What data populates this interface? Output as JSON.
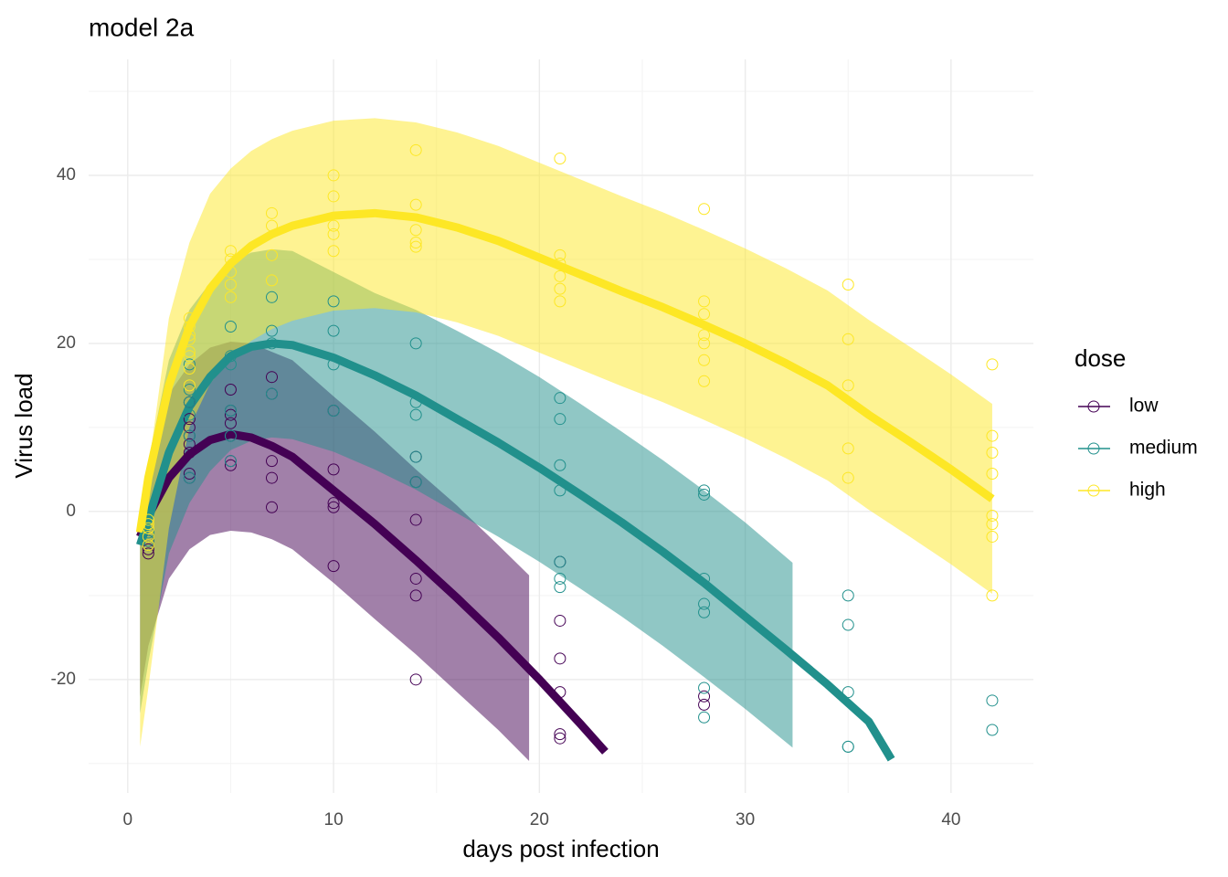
{
  "chart_data": {
    "type": "line",
    "title": "model 2a",
    "x_label": "days post infection",
    "y_label": "Virus load",
    "xlim": [
      -1.9,
      44.0
    ],
    "ylim": [
      -33.5,
      53.8
    ],
    "xticks": [
      0,
      10,
      20,
      30,
      40
    ],
    "yticks": [
      -20,
      0,
      20,
      40
    ],
    "xminorticks": [
      5,
      15,
      25,
      35
    ],
    "yminorticks": [
      -30,
      -10,
      10,
      30,
      50
    ],
    "grid": true,
    "legend_title": "dose",
    "legend_position": "right",
    "band_opacity": 0.5,
    "series": [
      {
        "name": "low",
        "color": "#440154",
        "points": {
          "x": [
            1,
            1,
            1,
            1,
            1,
            3,
            3,
            3,
            3,
            3,
            3,
            3,
            3,
            5,
            5,
            5,
            5,
            5,
            5,
            5,
            7,
            7,
            7,
            7,
            7,
            10,
            10,
            10,
            10,
            10,
            14,
            14,
            14,
            14,
            14,
            14,
            21,
            21,
            21,
            21,
            21,
            21,
            28,
            28
          ],
          "y": [
            -5,
            -4.5,
            -3.5,
            -3,
            -4,
            4,
            4.5,
            7,
            8,
            9,
            10,
            11,
            13,
            5.5,
            6,
            9,
            10.5,
            11.5,
            12,
            14.5,
            0.5,
            4,
            6,
            14,
            16,
            -6.5,
            0.5,
            1,
            5,
            12,
            -20,
            -10,
            -8,
            -1,
            3.5,
            6.5,
            -27,
            -26.5,
            -21.5,
            -17.5,
            -13,
            -6,
            -23,
            -22
          ]
        },
        "fit": {
          "x": [
            0.6,
            1,
            2,
            3,
            4,
            5,
            6,
            7,
            8,
            10,
            12,
            14,
            16,
            18,
            20,
            22,
            23.2
          ],
          "y": [
            -3,
            -0.5,
            4,
            6.8,
            8.5,
            9.2,
            8.8,
            7.8,
            6.5,
            2.5,
            -1.5,
            -5.8,
            -10.3,
            -15,
            -20,
            -25.3,
            -28.6
          ]
        },
        "band": {
          "x": [
            0.6,
            1,
            2,
            3,
            4,
            5,
            6,
            7,
            8,
            10,
            12,
            14,
            16,
            18,
            19.5
          ],
          "lower": [
            -22,
            -16,
            -8,
            -4.5,
            -2.8,
            -2.3,
            -2.5,
            -3.3,
            -4.5,
            -8.5,
            -12.8,
            -17,
            -21.5,
            -26,
            -29.7
          ],
          "upper": [
            -1,
            4,
            14,
            17.5,
            19.5,
            20.2,
            20,
            19,
            18,
            13.7,
            9.5,
            5,
            0.7,
            -4,
            -7.6
          ]
        }
      },
      {
        "name": "medium",
        "color": "#21908C",
        "points": {
          "x": [
            1,
            1,
            1,
            1,
            3,
            3,
            3,
            3,
            3,
            3,
            5,
            5,
            5,
            5,
            5,
            5,
            7,
            7,
            7,
            7,
            10,
            10,
            10,
            10,
            14,
            14,
            14,
            14,
            14,
            21,
            21,
            21,
            21,
            21,
            21,
            21,
            28,
            28,
            28,
            28,
            28,
            28,
            28,
            35,
            35,
            35,
            35,
            35,
            42,
            42
          ],
          "y": [
            -4,
            -3,
            -2.5,
            -3.5,
            4,
            9,
            11.5,
            13,
            14.5,
            17.5,
            6,
            9,
            12,
            17.5,
            18.5,
            22,
            14,
            20,
            21.5,
            25.5,
            12,
            17.5,
            21.5,
            25,
            3.5,
            6.5,
            11.5,
            13,
            20,
            -9,
            -8,
            -6,
            2.5,
            5.5,
            11,
            13.5,
            -24.5,
            -21,
            -12,
            -11,
            -8,
            2,
            2.5,
            -28,
            -28,
            -21.5,
            -13.5,
            -10,
            -26,
            -22.5
          ]
        },
        "fit": {
          "x": [
            0.6,
            1,
            2,
            3,
            4,
            5,
            6,
            7,
            8,
            10,
            12,
            14,
            16,
            18,
            20,
            22,
            24,
            26,
            28,
            30,
            32,
            34,
            36,
            37.1
          ],
          "y": [
            -4,
            -1,
            7,
            12.5,
            16,
            18.5,
            19.6,
            20,
            19.8,
            18.3,
            16.2,
            13.8,
            11,
            8.2,
            5.2,
            2,
            -1.3,
            -4.8,
            -8.5,
            -12.5,
            -16.5,
            -20.6,
            -25,
            -29.5
          ]
        },
        "band": {
          "x": [
            0.6,
            1,
            2,
            3,
            4,
            5,
            6,
            7,
            8,
            10,
            12,
            14,
            16,
            18,
            20,
            22,
            24,
            26,
            28,
            30,
            32.3
          ],
          "lower": [
            -24,
            -18,
            -5,
            1,
            4.8,
            7.3,
            8.4,
            8.8,
            8.6,
            7.1,
            5,
            2.6,
            -0.2,
            -3,
            -6,
            -9.2,
            -12.5,
            -16,
            -19.7,
            -23.5,
            -28.1
          ],
          "upper": [
            -1,
            6,
            18,
            24,
            27.2,
            29.7,
            30.8,
            31.2,
            31,
            28.5,
            26,
            24,
            21.5,
            18.9,
            16,
            12.8,
            9.5,
            6.1,
            2.5,
            -1.3,
            -6.1
          ]
        }
      },
      {
        "name": "high",
        "color": "#FDE725",
        "points": {
          "x": [
            1,
            1,
            1,
            1,
            1,
            3,
            3,
            3,
            3,
            3,
            3,
            3,
            3,
            5,
            5,
            5,
            5,
            5,
            7,
            7,
            7,
            7,
            10,
            10,
            10,
            10,
            10,
            14,
            14,
            14,
            14,
            14,
            21,
            21,
            21,
            21,
            21,
            21,
            28,
            28,
            28,
            28,
            28,
            28,
            28,
            35,
            35,
            35,
            35,
            35,
            42,
            42,
            42,
            42,
            42,
            42,
            42,
            42
          ],
          "y": [
            -1,
            -1.5,
            -2,
            -3,
            -4,
            17,
            19,
            20.5,
            21,
            22,
            23,
            15,
            18.5,
            25.5,
            27,
            28.5,
            30,
            31,
            27.5,
            30.5,
            34,
            35.5,
            31,
            33,
            34,
            37.5,
            40,
            31.5,
            32,
            33.5,
            36.5,
            43,
            25,
            26.5,
            28,
            29.5,
            30.5,
            42,
            15.5,
            18,
            20,
            21,
            23.5,
            25,
            36,
            4,
            7.5,
            15,
            20.5,
            27,
            -10,
            -3,
            -1.5,
            -0.5,
            4.5,
            7,
            9,
            17.5
          ]
        },
        "fit": {
          "x": [
            0.6,
            1,
            2,
            3,
            4,
            5,
            6,
            7,
            8,
            10,
            12,
            14,
            16,
            18,
            20,
            22,
            24,
            26,
            28,
            30,
            32,
            34,
            36,
            38,
            40,
            42
          ],
          "y": [
            -2.5,
            4,
            15,
            22,
            26.5,
            29.5,
            31.6,
            33,
            34,
            35.2,
            35.5,
            35,
            33.8,
            32.2,
            30.2,
            28.2,
            26.2,
            24.3,
            22.2,
            20,
            17.6,
            15,
            11.5,
            8.3,
            5,
            1.5
          ]
        },
        "band": {
          "x": [
            0.6,
            1,
            2,
            3,
            4,
            5,
            6,
            7,
            8,
            10,
            12,
            14,
            16,
            18,
            20,
            22,
            24,
            26,
            28,
            30,
            32,
            34,
            36,
            38,
            40,
            42
          ],
          "lower": [
            -28,
            -21,
            -2,
            10,
            15.2,
            18.2,
            20.3,
            21.7,
            22.7,
            23.9,
            24.2,
            23.7,
            22.5,
            20.9,
            18.9,
            16.9,
            14.9,
            13,
            10.9,
            8.7,
            6.3,
            3.7,
            0.2,
            -3,
            -6.3,
            -9.8
          ],
          "upper": [
            -1,
            5,
            23,
            32,
            37.8,
            40.8,
            42.9,
            44.3,
            45.3,
            46.5,
            46.8,
            46.3,
            45.1,
            43.5,
            41.5,
            39.5,
            37.5,
            35.6,
            33.5,
            31.3,
            28.9,
            26.3,
            22.8,
            19.6,
            16.3,
            12.8
          ]
        }
      }
    ]
  }
}
